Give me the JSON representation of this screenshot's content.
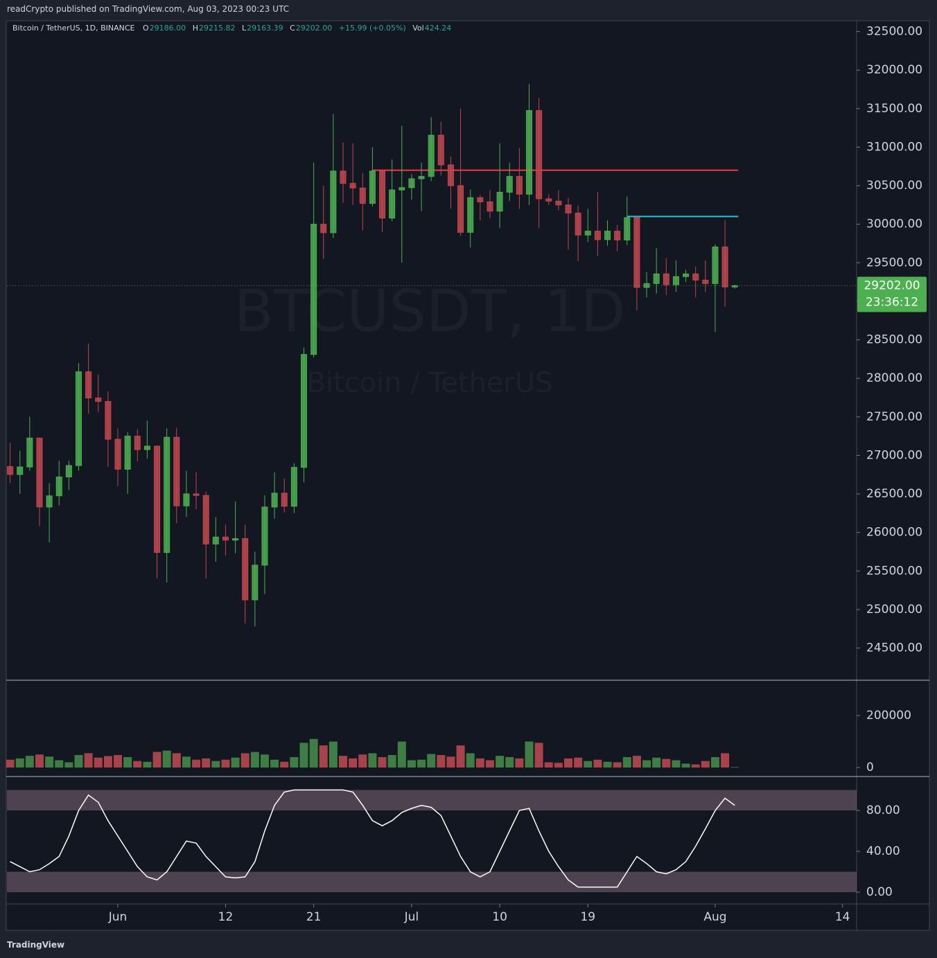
{
  "header": {
    "published": "readCrypto published on TradingView.com, Aug 03, 2023 00:23 UTC",
    "symbol": "Bitcoin / TetherUS, 1D, BINANCE",
    "o_label": "O",
    "open": "29186.00",
    "h_label": "H",
    "high": "29215.82",
    "l_label": "L",
    "low": "29163.39",
    "c_label": "C",
    "close": "29202.00",
    "change": "+15.99 (+0.05%)",
    "vol_label": "Vol",
    "volume": "424.24",
    "watermark": "BTCUSDT, 1D",
    "watermark_sub": "Bitcoin / TetherUS",
    "logo": "TradingView"
  },
  "chart_data": [
    {
      "type": "candlestick",
      "x": [
        "May 21",
        "May 22",
        "May 23",
        "May 24",
        "May 25",
        "May 26",
        "May 27",
        "May 28",
        "May 29",
        "May 30",
        "May 31",
        "Jun 1",
        "Jun 2",
        "Jun 3",
        "Jun 4",
        "Jun 5",
        "Jun 6",
        "Jun 7",
        "Jun 8",
        "Jun 9",
        "Jun 10",
        "Jun 11",
        "Jun 12",
        "Jun 13",
        "Jun 14",
        "Jun 15",
        "Jun 16",
        "Jun 17",
        "Jun 18",
        "Jun 19",
        "Jun 20",
        "Jun 21",
        "Jun 22",
        "Jun 23",
        "Jun 24",
        "Jun 25",
        "Jun 26",
        "Jun 27",
        "Jun 28",
        "Jun 29",
        "Jun 30",
        "Jul 1",
        "Jul 2",
        "Jul 3",
        "Jul 4",
        "Jul 5",
        "Jul 6",
        "Jul 7",
        "Jul 8",
        "Jul 9",
        "Jul 10",
        "Jul 11",
        "Jul 12",
        "Jul 13",
        "Jul 14",
        "Jul 15",
        "Jul 16",
        "Jul 17",
        "Jul 18",
        "Jul 19",
        "Jul 20",
        "Jul 21",
        "Jul 22",
        "Jul 23",
        "Jul 24",
        "Jul 25",
        "Jul 26",
        "Jul 27",
        "Jul 28",
        "Jul 29",
        "Jul 30",
        "Jul 31",
        "Aug 1",
        "Aug 2",
        "Aug 3"
      ],
      "open": [
        26855,
        26752,
        26850,
        27225,
        26330,
        26475,
        26720,
        26868,
        28085,
        27745,
        27700,
        27210,
        26820,
        27250,
        27075,
        27120,
        25740,
        27235,
        26345,
        26500,
        26480,
        25850,
        25940,
        25900,
        25920,
        25125,
        25575,
        26330,
        26510,
        26340,
        26845,
        28310,
        30000,
        29890,
        30690,
        30530,
        30470,
        30270,
        30690,
        30080,
        30445,
        30475,
        30590,
        30620,
        31155,
        30770,
        30500,
        29895,
        30345,
        30290,
        30170,
        30415,
        30620,
        30390,
        31475,
        30330,
        30300,
        30250,
        30145,
        29860,
        29910,
        29800,
        29910,
        29795,
        30085,
        29180,
        29230,
        29355,
        29215,
        29320,
        29355,
        29275,
        29230,
        29705,
        29186
      ],
      "high": [
        27160,
        27060,
        27500,
        27225,
        26640,
        26930,
        26930,
        28200,
        28450,
        28050,
        27830,
        27350,
        27300,
        27340,
        27450,
        27130,
        27350,
        27360,
        26800,
        26780,
        26530,
        26200,
        26100,
        26400,
        26100,
        25750,
        26480,
        26780,
        26700,
        26900,
        28400,
        30800,
        30500,
        31430,
        31060,
        31050,
        30660,
        31000,
        30700,
        30840,
        31280,
        30650,
        30800,
        31390,
        31330,
        30880,
        31500,
        30450,
        30380,
        30440,
        31050,
        30800,
        30990,
        31820,
        31640,
        30390,
        30440,
        30340,
        30240,
        30200,
        30420,
        30050,
        29990,
        30360,
        30100,
        29380,
        29690,
        29560,
        29530,
        29410,
        29450,
        29530,
        29740,
        30050,
        29216
      ],
      "low": [
        26640,
        26500,
        26800,
        26080,
        25870,
        26350,
        26550,
        26800,
        27540,
        27560,
        26850,
        26600,
        26500,
        26920,
        26960,
        25400,
        25350,
        26120,
        26200,
        26300,
        25400,
        25620,
        25700,
        25730,
        24820,
        24780,
        25200,
        26180,
        26260,
        26250,
        26650,
        28270,
        29550,
        29820,
        30280,
        30250,
        29920,
        30230,
        29900,
        30040,
        29500,
        30320,
        30170,
        30560,
        30630,
        30200,
        29850,
        29700,
        30050,
        30080,
        29950,
        30300,
        30200,
        30250,
        29950,
        30250,
        30180,
        29670,
        29520,
        29770,
        29590,
        29720,
        29650,
        29730,
        28880,
        29050,
        29100,
        29080,
        29120,
        29250,
        29050,
        29120,
        28600,
        28930,
        29163
      ],
      "close": [
        26752,
        26850,
        27225,
        26330,
        26475,
        26720,
        26868,
        28085,
        27745,
        27700,
        27210,
        26820,
        27250,
        27075,
        27120,
        25740,
        27235,
        26345,
        26500,
        26480,
        25850,
        25940,
        25900,
        25920,
        25125,
        25575,
        26330,
        26510,
        26340,
        26845,
        28310,
        30000,
        29890,
        30690,
        30530,
        30470,
        30270,
        30690,
        30080,
        30445,
        30475,
        30590,
        30620,
        31155,
        30770,
        30500,
        29895,
        30345,
        30290,
        30170,
        30415,
        30620,
        30390,
        31475,
        30330,
        30300,
        30250,
        30145,
        29860,
        29910,
        29800,
        29910,
        29795,
        30085,
        29180,
        29230,
        29355,
        29215,
        29320,
        29355,
        29275,
        29230,
        29705,
        29186,
        29202
      ],
      "up_color": "#4caf50",
      "down_color": "#c2464f",
      "ylim": [
        24100,
        32640
      ],
      "yticks": [
        {
          "value": 24500,
          "label": "24500.00"
        },
        {
          "value": 25000,
          "label": "25000.00"
        },
        {
          "value": 25500,
          "label": "25500.00"
        },
        {
          "value": 26000,
          "label": "26000.00"
        },
        {
          "value": 26500,
          "label": "26500.00"
        },
        {
          "value": 27000,
          "label": "27000.00"
        },
        {
          "value": 27500,
          "label": "27500.00"
        },
        {
          "value": 28000,
          "label": "28000.00"
        },
        {
          "value": 28500,
          "label": "28500.00"
        },
        {
          "value": 29000,
          "label": "29000.00"
        },
        {
          "value": 29500,
          "label": "29500.00"
        },
        {
          "value": 30000,
          "label": "30000.00"
        },
        {
          "value": 30500,
          "label": "30500.00"
        },
        {
          "value": 31000,
          "label": "31000.00"
        },
        {
          "value": 31500,
          "label": "31500.00"
        },
        {
          "value": 32000,
          "label": "32000.00"
        },
        {
          "value": 32500,
          "label": "32500.00"
        }
      ],
      "xticks": [
        {
          "value": "Jun 1",
          "label": "Jun"
        },
        {
          "value": "Jun 12",
          "label": "12"
        },
        {
          "value": "Jun 21",
          "label": "21"
        },
        {
          "value": "Jul 1",
          "label": "Jul"
        },
        {
          "value": "Jul 10",
          "label": "10"
        },
        {
          "value": "Jul 19",
          "label": "19"
        },
        {
          "value": "Aug 1",
          "label": "Aug"
        },
        {
          "value": "Aug 14",
          "label": "14"
        }
      ],
      "levels": [
        {
          "value": 30700,
          "from": "Jun 27",
          "color": "#f23645"
        },
        {
          "value": 30100,
          "from": "Jul 23",
          "color": "#26c6da"
        }
      ],
      "last_price": {
        "value": 29202,
        "label": "29202.00",
        "countdown": "23:36:12",
        "color": "#4caf50"
      }
    },
    {
      "type": "bar",
      "values": [
        30000,
        35000,
        45000,
        50000,
        42000,
        28000,
        20000,
        48000,
        55000,
        38000,
        44000,
        48000,
        40000,
        25000,
        22000,
        60000,
        65000,
        55000,
        42000,
        30000,
        35000,
        25000,
        30000,
        38000,
        55000,
        60000,
        50000,
        30000,
        22000,
        40000,
        95000,
        110000,
        85000,
        100000,
        45000,
        35000,
        50000,
        55000,
        40000,
        48000,
        100000,
        28000,
        30000,
        52000,
        48000,
        42000,
        85000,
        55000,
        35000,
        28000,
        45000,
        40000,
        35000,
        100000,
        95000,
        20000,
        18000,
        35000,
        38000,
        25000,
        30000,
        22000,
        20000,
        40000,
        45000,
        28000,
        38000,
        33000,
        28000,
        15000,
        12000,
        25000,
        40000,
        55000,
        2000
      ],
      "up_color": "#3e7d43",
      "down_color": "#a8434c",
      "ylim": [
        -32000,
        333333
      ],
      "yticks": [
        0,
        200000
      ]
    },
    {
      "type": "line",
      "series": [
        {
          "color": "#ffffff",
          "values": [
            30,
            25,
            20,
            22,
            28,
            35,
            55,
            80,
            95,
            88,
            70,
            55,
            40,
            25,
            15,
            12,
            20,
            35,
            50,
            48,
            35,
            25,
            15,
            14,
            15,
            30,
            60,
            85,
            98,
            100,
            100,
            100,
            100,
            100,
            100,
            98,
            85,
            70,
            65,
            70,
            78,
            82,
            85,
            83,
            75,
            55,
            35,
            20,
            15,
            20,
            40,
            60,
            80,
            82,
            60,
            40,
            25,
            12,
            5,
            5,
            5,
            5,
            5,
            20,
            35,
            28,
            20,
            18,
            22,
            30,
            45,
            62,
            80,
            92,
            85
          ]
        }
      ],
      "zones": [
        {
          "from": 80,
          "to": 100,
          "color": "#7e6677"
        },
        {
          "from": 0,
          "to": 20,
          "color": "#7e6677"
        }
      ],
      "ylim": [
        -11.5,
        112.5
      ],
      "yticks": [
        {
          "value": 0,
          "label": "0.00"
        },
        {
          "value": 40,
          "label": "40.00"
        },
        {
          "value": 80,
          "label": "80.00"
        }
      ]
    }
  ]
}
